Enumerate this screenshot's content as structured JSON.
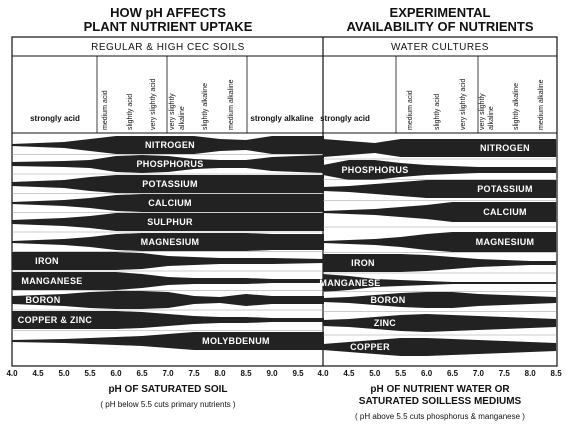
{
  "left": {
    "title": [
      "HOW pH AFFECTS",
      "PLANT NUTRIENT UPTAKE"
    ],
    "subtitle": "REGULAR & HIGH CEC SOILS",
    "zones": [
      "strongly acid",
      "medium acid",
      "slightly acid",
      "very slightly acid",
      [
        "very slightly",
        "alkaline"
      ],
      "slightly alkaline",
      "medium alkaline",
      "strongly alkaline"
    ],
    "nutrients": [
      "NITROGEN",
      "PHOSPHORUS",
      "POTASSIUM",
      "CALCIUM",
      "SULPHUR",
      "MAGNESIUM",
      "IRON",
      "MANGANESE",
      "BORON",
      "COPPER & ZINC",
      "MOLYBDENUM"
    ],
    "axis_ticks": [
      "4.0",
      "4.5",
      "5.0",
      "5.5",
      "6.0",
      "6.5",
      "7.0",
      "7.5",
      "8.0",
      "8.5",
      "9.0",
      "9.5"
    ],
    "axis_title": "pH OF SATURATED SOIL",
    "note": "( pH below 5.5 cuts primary nutrients )"
  },
  "right": {
    "title": [
      "EXPERIMENTAL",
      "AVAILABILITY OF NUTRIENTS"
    ],
    "subtitle": "WATER CULTURES",
    "zones": [
      "strongly acid",
      "medium acid",
      "slightly acid",
      "very slightly acid",
      [
        "very slightly",
        "alkaline"
      ],
      "slightly alkaline",
      "medium alkaline"
    ],
    "nutrients": [
      "NITROGEN",
      "PHOSPHORUS",
      "POTASSIUM",
      "CALCIUM",
      "MAGNESIUM",
      "IRON",
      "MANGANESE",
      "BORON",
      "ZINC",
      "COPPER"
    ],
    "axis_ticks": [
      "4.0",
      "4.5",
      "5.0",
      "5.5",
      "6.0",
      "6.5",
      "7.0",
      "7.5",
      "8.0",
      "8.5"
    ],
    "axis_title": [
      "pH OF NUTRIENT WATER OR",
      "SATURATED SOILLESS MEDIUMS"
    ],
    "note": "( pH above 5.5 cuts phosphorus & manganese )"
  }
}
